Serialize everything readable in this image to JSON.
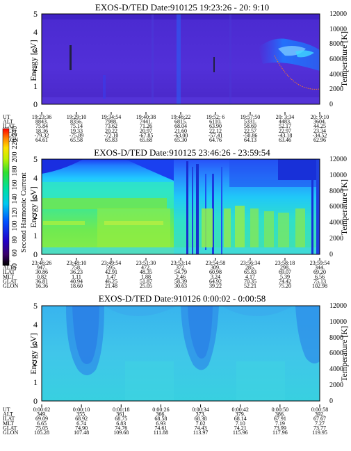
{
  "chart_data": [
    {
      "type": "heatmap",
      "title": "EXOS-D/TED   Date:910125  19:23:26 - 20: 9:10",
      "ylabel": "Energy [eV]",
      "ylabel_right": "Temperature [K]",
      "ylim": [
        0,
        5
      ],
      "ylim_right": [
        0,
        12000
      ],
      "yticks": [
        "0",
        "1",
        "2",
        "3",
        "4",
        "5"
      ],
      "yticks_right": [
        "0",
        "2000",
        "4000",
        "6000",
        "8000",
        "10000",
        "12000"
      ],
      "row_labels": [
        "UT",
        "ALT",
        "ILAT",
        "MLT",
        "GLAT",
        "GLON"
      ],
      "columns": [
        [
          "19:23:36",
          "8843.",
          "75.84",
          "18.36",
          "-79.32",
          "64.61"
        ],
        [
          "19:29:10",
          "8356.",
          "75.14",
          "19.33",
          "-75.89",
          "65.58"
        ],
        [
          "19:34:54",
          "7988.",
          "73.62",
          "20.22",
          "-72.10",
          "65.83"
        ],
        [
          "19:40:38",
          "7441.",
          "71.26",
          "20.97",
          "-67.85",
          "65.68"
        ],
        [
          "19:46:22",
          "6815.",
          "68.04",
          "21.60",
          "-63.00",
          "65.30"
        ],
        [
          "19:52: 6",
          "6110.",
          "63.90",
          "22.12",
          "-57.41",
          "64.76"
        ],
        [
          "19:57:50",
          "5331.",
          "58.69",
          "22.57",
          "-50.86",
          "64.13"
        ],
        [
          "20: 3:34",
          "4483.",
          "52.17",
          "22.97",
          "-43.18",
          "63.46"
        ],
        [
          "20: 9:10",
          "3604.",
          "44.25",
          "23.34",
          "-34.52",
          "62.96"
        ]
      ],
      "colorscale_label": "Second Harmonic Current",
      "colorscale_ticks": [
        "40",
        "60",
        "80",
        "100",
        "120",
        "140",
        "160",
        "180",
        "200",
        "220",
        "240"
      ]
    },
    {
      "type": "heatmap",
      "title": "EXOS-D/TED   Date:910125  23:46:26 - 23:59:54",
      "ylabel": "Energy [eV]",
      "ylabel_right": "Temperature [K]",
      "ylim": [
        0,
        5
      ],
      "ylim_right": [
        0,
        12000
      ],
      "yticks": [
        "0",
        "1",
        "2",
        "3",
        "4",
        "5"
      ],
      "yticks_right": [
        "0",
        "2000",
        "4000",
        "6000",
        "8000",
        "10000",
        "12000"
      ],
      "row_labels": [
        "UT",
        "ALT",
        "ILAT",
        "MLT",
        "GLAT",
        "GLON"
      ],
      "columns": [
        [
          "23:46:26",
          "947.",
          "30.86",
          "0.82",
          "36.81",
          "16.36"
        ],
        [
          "23:48:10",
          "758.",
          "36.23",
          "1.11",
          "40.94",
          "18.60"
        ],
        [
          "23:49:54",
          "595.",
          "42.91",
          "1.47",
          "46.25",
          "21.48"
        ],
        [
          "23:51:30",
          "472.",
          "48.35",
          "1.88",
          "51.87",
          "25.05"
        ],
        [
          "23:53:14",
          "372.",
          "54.79",
          "2.46",
          "58.39",
          "30.63"
        ],
        [
          "23:54:58",
          "309.",
          "60.98",
          "3.24",
          "64.92",
          "39.22"
        ],
        [
          "23:56:34",
          "285.",
          "65.83",
          "4.17",
          "70.35",
          "52.21"
        ],
        [
          "23:58:18",
          "298.",
          "69.07",
          "5.39",
          "74.42",
          "75.20"
        ],
        [
          "23:59:54",
          "344.",
          "69.20",
          "6.56",
          "75.13",
          "102.98"
        ]
      ]
    },
    {
      "type": "heatmap",
      "title": "EXOS-D/TED   Date:910126   0:00:02 - 0:00:58",
      "ylabel": "Energy [eV]",
      "ylabel_right": "Temperature [K]",
      "ylim": [
        0,
        5
      ],
      "ylim_right": [
        0,
        12000
      ],
      "yticks": [
        "0",
        "1",
        "2",
        "3",
        "4",
        "5"
      ],
      "yticks_right": [
        "0",
        "2000",
        "4000",
        "6000",
        "8000",
        "10000",
        "12000"
      ],
      "row_labels": [
        "UT",
        "ALT",
        "ILAT",
        "MLT",
        "GLAT",
        "GLON"
      ],
      "columns": [
        [
          "0:00:02",
          "349.",
          "69.09",
          "6.65",
          "75.05",
          "105.28"
        ],
        [
          "0:00:10",
          "355.",
          "68.92",
          "6.74",
          "74.90",
          "107.48"
        ],
        [
          "0:00:18",
          "361.",
          "68.75",
          "6.83",
          "74.76",
          "109.68"
        ],
        [
          "0:00:26",
          "366.",
          "68.58",
          "6.93",
          "74.61",
          "111.88"
        ],
        [
          "0:00:34",
          "373.",
          "68.38",
          "7.02",
          "74.43",
          "113.97"
        ],
        [
          "0:00:42",
          "379.",
          "68.14",
          "7.10",
          "74.21",
          "115.96"
        ],
        [
          "0:00:50",
          "386.",
          "67.91",
          "7.19",
          "73.99",
          "117.96"
        ],
        [
          "0:00:58",
          "392.",
          "67.67",
          "7.27",
          "73.77",
          "119.95"
        ]
      ]
    }
  ]
}
